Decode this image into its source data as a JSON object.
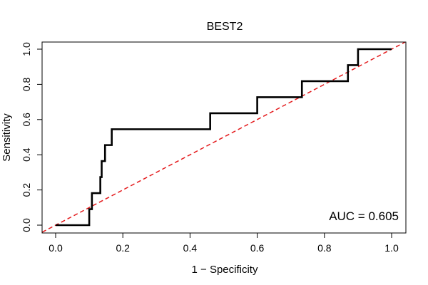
{
  "chart_data": {
    "type": "line",
    "title": "BEST2",
    "xlabel": "1 − Specificity",
    "ylabel": "Sensitivity",
    "xlim": [
      0,
      1
    ],
    "ylim": [
      0,
      1
    ],
    "x_ticks": [
      0.0,
      0.2,
      0.4,
      0.6,
      0.8,
      1.0
    ],
    "x_tick_labels": [
      "0.0",
      "0.2",
      "0.4",
      "0.6",
      "0.8",
      "1.0"
    ],
    "y_ticks": [
      0.0,
      0.2,
      0.4,
      0.6,
      0.8,
      1.0
    ],
    "y_tick_labels": [
      "0.0",
      "0.2",
      "0.4",
      "0.6",
      "0.8",
      "1.0"
    ],
    "grid": false,
    "series": [
      {
        "name": "ROC curve",
        "color": "#000000",
        "style": "solid",
        "x": [
          0.0,
          0.1,
          0.1,
          0.108,
          0.108,
          0.133,
          0.133,
          0.137,
          0.137,
          0.147,
          0.147,
          0.167,
          0.167,
          0.46,
          0.46,
          0.6,
          0.6,
          0.733,
          0.733,
          0.87,
          0.87,
          0.9,
          0.9,
          1.0
        ],
        "y": [
          0.0,
          0.0,
          0.091,
          0.091,
          0.182,
          0.182,
          0.273,
          0.273,
          0.364,
          0.364,
          0.455,
          0.455,
          0.545,
          0.545,
          0.636,
          0.636,
          0.727,
          0.727,
          0.818,
          0.818,
          0.909,
          0.909,
          1.0,
          1.0
        ]
      },
      {
        "name": "chance diagonal",
        "color": "#e41a1c",
        "style": "dashed",
        "x": [
          -0.04,
          1.04
        ],
        "y": [
          -0.04,
          1.04
        ]
      }
    ],
    "annotations": [
      {
        "text": "AUC = 0.605",
        "position": "bottom-right"
      }
    ]
  }
}
